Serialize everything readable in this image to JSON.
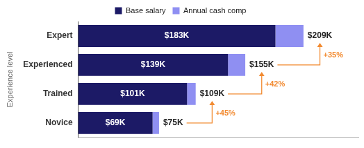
{
  "chart_data": {
    "type": "bar",
    "orientation": "horizontal",
    "stacked": true,
    "categories": [
      "Expert",
      "Experienced",
      "Trained",
      "Novice"
    ],
    "series": [
      {
        "name": "Base salary",
        "color": "#1c1a66",
        "values": [
          183,
          139,
          101,
          69
        ],
        "value_labels": [
          "$183K",
          "$139K",
          "$101K",
          "$69K"
        ]
      },
      {
        "name": "Annual cash comp",
        "color": "#8f8ff2",
        "values": [
          26,
          16,
          8,
          6
        ]
      }
    ],
    "totals": [
      209,
      155,
      109,
      75
    ],
    "total_labels": [
      "$209K",
      "$155K",
      "$109K",
      "$75K"
    ],
    "annotations": [
      {
        "text": "+35%",
        "value": 35,
        "from": "Experienced",
        "to": "Expert",
        "color": "#f28a30"
      },
      {
        "text": "+42%",
        "value": 42,
        "from": "Trained",
        "to": "Experienced",
        "color": "#f28a30"
      },
      {
        "text": "+45%",
        "value": 45,
        "from": "Novice",
        "to": "Trained",
        "color": "#f28a30"
      }
    ],
    "ylabel": "Experience level",
    "xlim": [
      0,
      260
    ],
    "tick_labels": "y",
    "legend": "top",
    "data_labels": true,
    "grid": false
  }
}
